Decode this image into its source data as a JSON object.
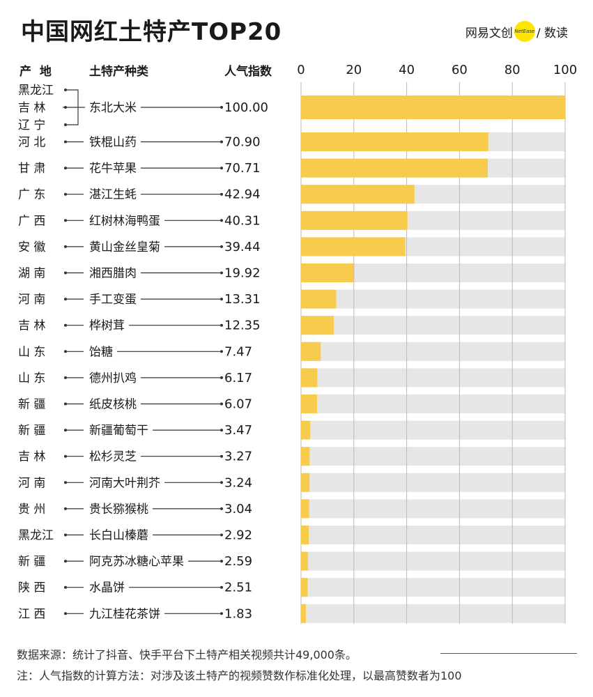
{
  "header": {
    "title": "中国网红土特产TOP20",
    "brand_left": "网易文创",
    "brand_badge": "NetEase",
    "brand_right": "/ 数读",
    "col_origin": "产  地",
    "col_product": "土特产种类",
    "col_index": "人气指数"
  },
  "colors": {
    "bar": "#f7cc4c",
    "track": "#e6e6e6",
    "grid": "#b9b9b9",
    "accent": "#ffe600"
  },
  "chart_data": {
    "type": "bar",
    "orientation": "horizontal",
    "title": "中国网红土特产TOP20",
    "xlim": [
      0,
      100
    ],
    "xticks": [
      "0",
      "20",
      "40",
      "60",
      "80",
      "100"
    ],
    "grid": true,
    "rows": [
      {
        "origin": [
          "黑龙江",
          "吉  林",
          "辽  宁"
        ],
        "product": "东北大米",
        "value": 100.0,
        "label": "100.00"
      },
      {
        "origin": [
          "河  北"
        ],
        "product": "铁棍山药",
        "value": 70.9,
        "label": "70.90"
      },
      {
        "origin": [
          "甘  肃"
        ],
        "product": "花牛苹果",
        "value": 70.71,
        "label": "70.71"
      },
      {
        "origin": [
          "广  东"
        ],
        "product": "湛江生蚝",
        "value": 42.94,
        "label": "42.94"
      },
      {
        "origin": [
          "广  西"
        ],
        "product": "红树林海鸭蛋",
        "value": 40.31,
        "label": "40.31"
      },
      {
        "origin": [
          "安  徽"
        ],
        "product": "黄山金丝皇菊",
        "value": 39.44,
        "label": "39.44"
      },
      {
        "origin": [
          "湖  南"
        ],
        "product": "湘西腊肉",
        "value": 19.92,
        "label": "19.92"
      },
      {
        "origin": [
          "河  南"
        ],
        "product": "手工变蛋",
        "value": 13.31,
        "label": "13.31"
      },
      {
        "origin": [
          "吉  林"
        ],
        "product": "桦树茸",
        "value": 12.35,
        "label": "12.35"
      },
      {
        "origin": [
          "山  东"
        ],
        "product": "饴糖",
        "value": 7.47,
        "label": "7.47"
      },
      {
        "origin": [
          "山  东"
        ],
        "product": "德州扒鸡",
        "value": 6.17,
        "label": "6.17"
      },
      {
        "origin": [
          "新  疆"
        ],
        "product": "纸皮核桃",
        "value": 6.07,
        "label": "6.07"
      },
      {
        "origin": [
          "新  疆"
        ],
        "product": "新疆葡萄干",
        "value": 3.47,
        "label": "3.47"
      },
      {
        "origin": [
          "吉  林"
        ],
        "product": "松杉灵芝",
        "value": 3.27,
        "label": "3.27"
      },
      {
        "origin": [
          "河  南"
        ],
        "product": "河南大叶荆芥",
        "value": 3.24,
        "label": "3.24"
      },
      {
        "origin": [
          "贵  州"
        ],
        "product": "贵长猕猴桃",
        "value": 3.04,
        "label": "3.04"
      },
      {
        "origin": [
          "黑龙江"
        ],
        "product": "长白山榛蘑",
        "value": 2.92,
        "label": "2.92"
      },
      {
        "origin": [
          "新  疆"
        ],
        "product": "阿克苏冰糖心苹果",
        "value": 2.59,
        "label": "2.59"
      },
      {
        "origin": [
          "陕  西"
        ],
        "product": "水晶饼",
        "value": 2.51,
        "label": "2.51"
      },
      {
        "origin": [
          "江  西"
        ],
        "product": "九江桂花茶饼",
        "value": 1.83,
        "label": "1.83"
      }
    ]
  },
  "footer": {
    "source": "数据来源：统计了抖音、快手平台下土特产相关视频共计49,000条。",
    "note": "注：人气指数的计算方法：对涉及该土特产的视频赞数作标准化处理，以最高赞数者为100"
  }
}
